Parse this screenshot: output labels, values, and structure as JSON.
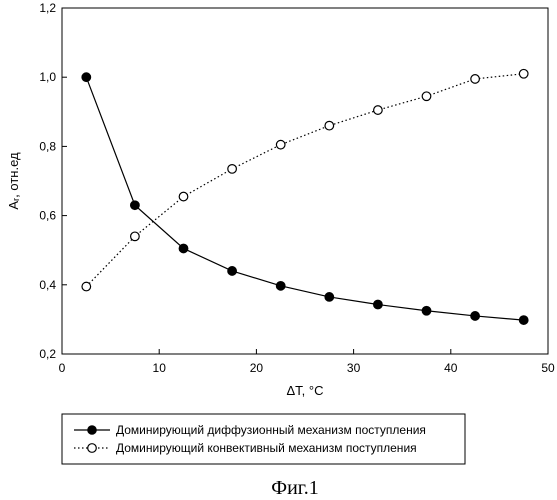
{
  "chart_data": {
    "type": "line",
    "title": "",
    "xlabel": "ΔT, °C",
    "ylabel": "Aᵣ, отн.ед",
    "xlim": [
      0,
      50
    ],
    "ylim": [
      0.2,
      1.2
    ],
    "xticks": [
      "0",
      "10",
      "20",
      "30",
      "40",
      "50"
    ],
    "yticks": [
      "0,2",
      "0,4",
      "0,6",
      "0,8",
      "1,0",
      "1,2"
    ],
    "grid": false,
    "legend_position": "bottom",
    "x": [
      2.5,
      7.5,
      12.5,
      17.5,
      22.5,
      27.5,
      32.5,
      37.5,
      42.5,
      47.5
    ],
    "series": [
      {
        "name": "Доминирующий диффузионный механизм поступления",
        "marker": "filled-circle",
        "line": "solid",
        "values": [
          1.0,
          0.63,
          0.505,
          0.44,
          0.397,
          0.365,
          0.343,
          0.325,
          0.31,
          0.298
        ]
      },
      {
        "name": "Доминирующий конвективный механизм поступления",
        "marker": "open-circle",
        "line": "dotted",
        "values": [
          0.395,
          0.54,
          0.655,
          0.735,
          0.805,
          0.86,
          0.905,
          0.945,
          0.995,
          1.01
        ]
      }
    ]
  },
  "caption": "Фиг.1",
  "colors": {
    "ink": "#000000",
    "background": "#ffffff"
  }
}
